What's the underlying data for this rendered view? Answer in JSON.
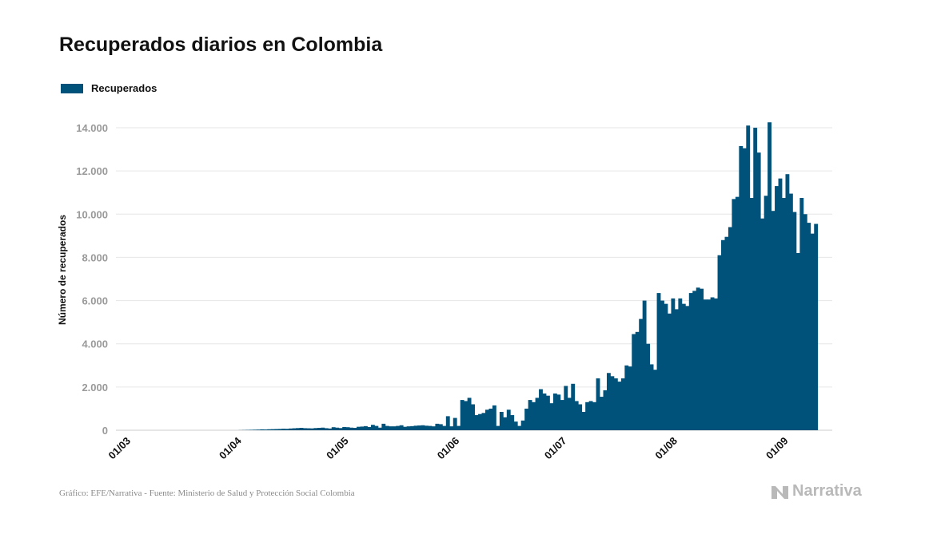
{
  "header": {
    "title": "Recuperados diarios en Colombia"
  },
  "legend": {
    "label": "Recuperados"
  },
  "footer": {
    "source": "Gráfico: EFE/Narrativa - Fuente: Ministerio de Salud y Protección Social Colombia",
    "brand": "Narrativa"
  },
  "colors": {
    "series": "#00527a",
    "grid": "#e6e6e6",
    "tick": "#9a9a9a",
    "axis_label": "#111111",
    "brand": "#b9b9b9",
    "brand_icon": "narrativa-logo-icon"
  },
  "chart_data": {
    "type": "bar",
    "title": "Recuperados diarios en Colombia",
    "xlabel": "",
    "ylabel": "Número de recuperados",
    "x_tick_labels": [
      "01/03",
      "01/04",
      "01/05",
      "01/06",
      "01/07",
      "01/08",
      "01/09"
    ],
    "y_tick_labels": [
      "0",
      "2.000",
      "4.000",
      "6.000",
      "8.000",
      "10.000",
      "12.000",
      "14.000"
    ],
    "y_ticks": [
      0,
      2000,
      4000,
      6000,
      8000,
      10000,
      12000,
      14000
    ],
    "ylim": [
      0,
      14700
    ],
    "x_range_days": [
      "01/03",
      "05/09"
    ],
    "grid": true,
    "legend_position": "top-left",
    "series": [
      {
        "name": "Recuperados",
        "color": "#00527a",
        "values": [
          0,
          0,
          0,
          0,
          0,
          0,
          0,
          0,
          0,
          0,
          0,
          0,
          0,
          0,
          0,
          0,
          0,
          0,
          0,
          0,
          0,
          0,
          0,
          0,
          0,
          0,
          0,
          0,
          0,
          0,
          0,
          5,
          10,
          15,
          20,
          25,
          30,
          40,
          35,
          45,
          50,
          55,
          60,
          70,
          65,
          80,
          90,
          100,
          110,
          95,
          90,
          85,
          100,
          110,
          120,
          95,
          80,
          140,
          120,
          100,
          150,
          140,
          120,
          110,
          160,
          170,
          190,
          150,
          250,
          200,
          120,
          300,
          200,
          180,
          180,
          200,
          230,
          160,
          180,
          190,
          210,
          220,
          230,
          210,
          200,
          180,
          300,
          280,
          200,
          650,
          180,
          570,
          200,
          1400,
          1350,
          1500,
          1200,
          700,
          750,
          800,
          950,
          1000,
          1150,
          200,
          850,
          600,
          950,
          700,
          400,
          200,
          450,
          1000,
          1400,
          1300,
          1500,
          1900,
          1700,
          1600,
          1250,
          1700,
          1650,
          1400,
          2050,
          1500,
          2150,
          1350,
          1200,
          850,
          1300,
          1350,
          1300,
          2400,
          1550,
          1850,
          2650,
          2500,
          2400,
          2250,
          2400,
          3000,
          2950,
          4450,
          4550,
          5150,
          6000,
          4000,
          3050,
          2800,
          6350,
          6000,
          5850,
          5400,
          6100,
          5600,
          6100,
          5850,
          5750,
          6350,
          6450,
          6600,
          6550,
          6050,
          6050,
          6150,
          6100,
          8100,
          8800,
          8950,
          9400,
          10700,
          10800,
          13150,
          13050,
          14100,
          10750,
          14000,
          12850,
          9800,
          10850,
          14250,
          10150,
          11300,
          11650,
          10750,
          11850,
          10950,
          10100,
          8200,
          10750,
          10000,
          9600,
          9100,
          9550
        ]
      }
    ]
  }
}
